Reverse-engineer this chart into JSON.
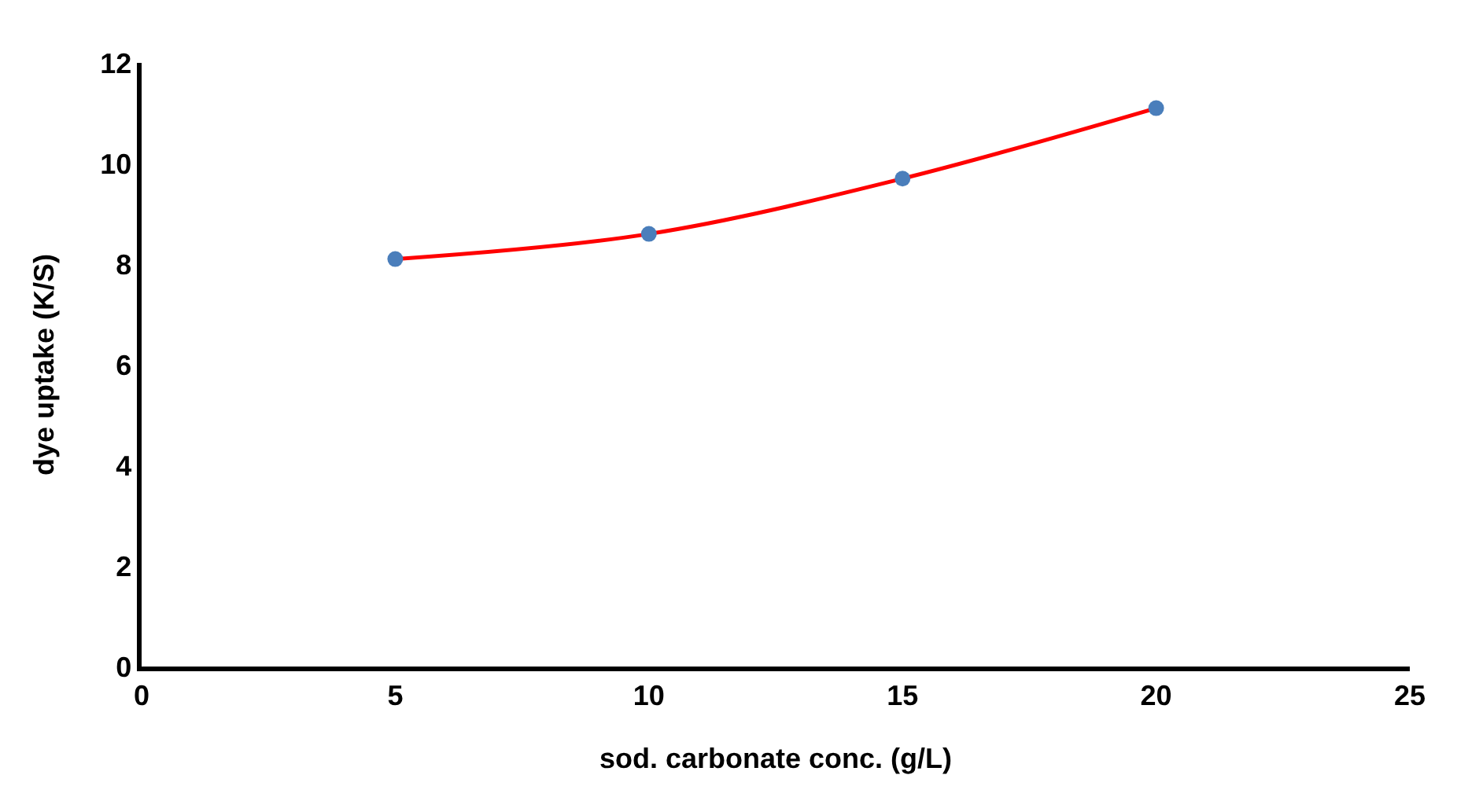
{
  "chart_data": {
    "type": "line",
    "xlabel": "sod. carbonate conc. (g/L)",
    "ylabel": "dye uptake (K/S)",
    "x": [
      5,
      10,
      15,
      20
    ],
    "series": [
      {
        "color": "#ff0000",
        "values": [
          8.1,
          8.6,
          9.7,
          11.1
        ],
        "marker": "none"
      },
      {
        "type": "scatter",
        "color": "#4a7ebb",
        "values": [
          8.1,
          8.6,
          9.7,
          11.1
        ],
        "marker": "circle"
      }
    ],
    "xlim": [
      0,
      25
    ],
    "xticks": [
      0,
      5,
      10,
      15,
      20,
      25
    ],
    "ylim": [
      0,
      12
    ],
    "yticks": [
      0,
      2,
      4,
      6,
      8,
      10,
      12
    ]
  }
}
